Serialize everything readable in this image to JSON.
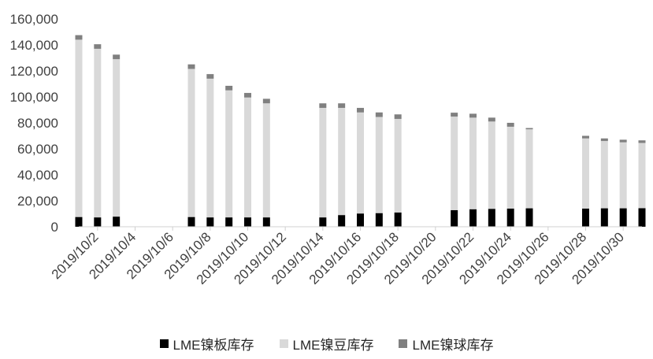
{
  "chart_data": {
    "type": "bar",
    "stacked": true,
    "title": "",
    "xlabel": "",
    "ylabel": "",
    "ylim": [
      0,
      160000
    ],
    "y_ticks": [
      0,
      20000,
      40000,
      60000,
      80000,
      100000,
      120000,
      140000,
      160000
    ],
    "y_tick_labels": [
      "0",
      "20,000",
      "40,000",
      "60,000",
      "80,000",
      "100,000",
      "120,000",
      "140,000",
      "160,000"
    ],
    "x_axis": {
      "kind": "date",
      "range": [
        "2019/10/1",
        "2019/10/31"
      ],
      "tick_dates": [
        "2019/10/2",
        "2019/10/4",
        "2019/10/6",
        "2019/10/8",
        "2019/10/10",
        "2019/10/12",
        "2019/10/14",
        "2019/10/16",
        "2019/10/18",
        "2019/10/20",
        "2019/10/22",
        "2019/10/24",
        "2019/10/26",
        "2019/10/28",
        "2019/10/30"
      ],
      "tick_labels": [
        "2019/10/2",
        "2019/10/4",
        "2019/10/6",
        "2019/10/8",
        "2019/10/10",
        "2019/10/12",
        "2019/10/14",
        "2019/10/16",
        "2019/10/18",
        "2019/10/20",
        "2019/10/22",
        "2019/10/24",
        "2019/10/26",
        "2019/10/28",
        "2019/10/30"
      ]
    },
    "grid": false,
    "legend_position": "bottom",
    "dates": [
      "2019/10/1",
      "2019/10/2",
      "2019/10/3",
      "2019/10/7",
      "2019/10/8",
      "2019/10/9",
      "2019/10/10",
      "2019/10/11",
      "2019/10/14",
      "2019/10/15",
      "2019/10/16",
      "2019/10/17",
      "2019/10/18",
      "2019/10/21",
      "2019/10/22",
      "2019/10/23",
      "2019/10/24",
      "2019/10/25",
      "2019/10/28",
      "2019/10/29",
      "2019/10/30",
      "2019/10/31"
    ],
    "series": [
      {
        "name": "LME镍板库存",
        "color": "#000000",
        "values": [
          7500,
          7200,
          7800,
          7500,
          7200,
          7200,
          7200,
          7200,
          7200,
          9000,
          10200,
          10500,
          11000,
          12800,
          13500,
          13800,
          14000,
          14200,
          14000,
          14200,
          14200,
          14300
        ]
      },
      {
        "name": "LME镍豆库存",
        "color": "#d9d9d9",
        "values": [
          136500,
          129800,
          121200,
          114000,
          106800,
          97800,
          92300,
          87800,
          84300,
          82500,
          77800,
          74000,
          72000,
          72000,
          70500,
          67200,
          63000,
          60800,
          54000,
          51800,
          50800,
          50200
        ]
      },
      {
        "name": "LME镍球库存",
        "color": "#808080",
        "values": [
          3500,
          3500,
          3500,
          3500,
          3500,
          3500,
          3500,
          3500,
          3500,
          3500,
          3500,
          3500,
          3500,
          3000,
          3000,
          3000,
          3000,
          1000,
          2000,
          2000,
          2000,
          2000
        ]
      }
    ]
  }
}
